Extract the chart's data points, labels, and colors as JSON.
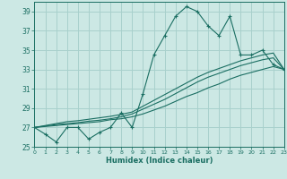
{
  "xlabel": "Humidex (Indice chaleur)",
  "bg_color": "#cce8e4",
  "grid_color": "#a8d0cc",
  "line_color": "#1a6e62",
  "x_values": [
    0,
    1,
    2,
    3,
    4,
    5,
    6,
    7,
    8,
    9,
    10,
    11,
    12,
    13,
    14,
    15,
    16,
    17,
    18,
    19,
    20,
    21,
    22,
    23
  ],
  "y_main": [
    27,
    26.3,
    25.5,
    27,
    27,
    25.8,
    26.5,
    27,
    28.5,
    27,
    30.5,
    34.5,
    36.5,
    38.5,
    39.5,
    39,
    37.5,
    36.5,
    38.5,
    34.5,
    34.5,
    35,
    33.5,
    33
  ],
  "y_line1": [
    27,
    27.1,
    27.2,
    27.3,
    27.4,
    27.5,
    27.6,
    27.8,
    27.9,
    28.1,
    28.4,
    28.8,
    29.2,
    29.7,
    30.2,
    30.6,
    31.1,
    31.5,
    32.0,
    32.4,
    32.7,
    33.0,
    33.3,
    33.0
  ],
  "y_line2": [
    27,
    27.15,
    27.3,
    27.4,
    27.5,
    27.65,
    27.75,
    27.9,
    28.1,
    28.4,
    28.9,
    29.4,
    29.9,
    30.5,
    31.1,
    31.7,
    32.2,
    32.6,
    33.0,
    33.4,
    33.7,
    34.0,
    34.2,
    33.0
  ],
  "y_line3": [
    27,
    27.2,
    27.4,
    27.6,
    27.7,
    27.85,
    28.0,
    28.15,
    28.35,
    28.6,
    29.2,
    29.8,
    30.4,
    31.0,
    31.6,
    32.2,
    32.7,
    33.1,
    33.5,
    33.9,
    34.2,
    34.5,
    34.7,
    33.0
  ],
  "xlim": [
    0,
    23
  ],
  "ylim": [
    25,
    40
  ],
  "yticks": [
    25,
    27,
    29,
    31,
    33,
    35,
    37,
    39
  ],
  "xticks": [
    0,
    1,
    2,
    3,
    4,
    5,
    6,
    7,
    8,
    9,
    10,
    11,
    12,
    13,
    14,
    15,
    16,
    17,
    18,
    19,
    20,
    21,
    22,
    23
  ],
  "xtick_labels": [
    "0",
    "1",
    "2",
    "3",
    "4",
    "5",
    "6",
    "7",
    "8",
    "9",
    "10",
    "11",
    "12",
    "13",
    "14",
    "15",
    "16",
    "17",
    "18",
    "19",
    "20",
    "21",
    "22",
    "23"
  ]
}
